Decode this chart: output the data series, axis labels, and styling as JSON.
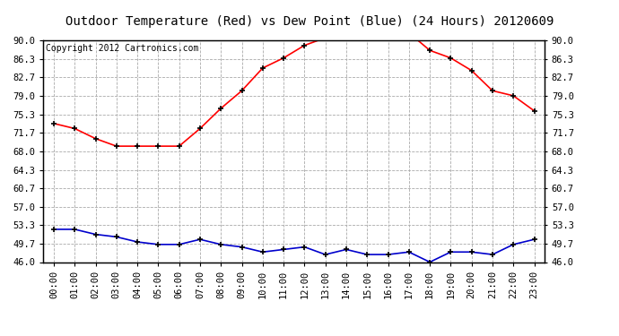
{
  "title": "Outdoor Temperature (Red) vs Dew Point (Blue) (24 Hours) 20120609",
  "copyright_text": "Copyright 2012 Cartronics.com",
  "hours": [
    "00:00",
    "01:00",
    "02:00",
    "03:00",
    "04:00",
    "05:00",
    "06:00",
    "07:00",
    "08:00",
    "09:00",
    "10:00",
    "11:00",
    "12:00",
    "13:00",
    "14:00",
    "15:00",
    "16:00",
    "17:00",
    "18:00",
    "19:00",
    "20:00",
    "21:00",
    "22:00",
    "23:00"
  ],
  "temp_red": [
    73.5,
    72.5,
    70.5,
    69.0,
    69.0,
    69.0,
    69.0,
    72.5,
    76.5,
    80.0,
    84.5,
    86.5,
    89.0,
    90.5,
    91.5,
    91.5,
    91.5,
    91.5,
    88.0,
    86.5,
    84.0,
    80.0,
    79.0,
    76.0
  ],
  "dew_blue": [
    52.5,
    52.5,
    51.5,
    51.0,
    50.0,
    49.5,
    49.5,
    50.5,
    49.5,
    49.0,
    48.0,
    48.5,
    49.0,
    47.5,
    48.5,
    47.5,
    47.5,
    48.0,
    46.0,
    48.0,
    48.0,
    47.5,
    49.5,
    50.5
  ],
  "y_ticks": [
    46.0,
    49.7,
    53.3,
    57.0,
    60.7,
    64.3,
    68.0,
    71.7,
    75.3,
    79.0,
    82.7,
    86.3,
    90.0
  ],
  "y_min": 46.0,
  "y_max": 90.0,
  "red_color": "#ff0000",
  "blue_color": "#0000cc",
  "bg_color": "#ffffff",
  "grid_color": "#aaaaaa",
  "title_fontsize": 10,
  "copyright_fontsize": 7,
  "tick_fontsize": 7.5
}
